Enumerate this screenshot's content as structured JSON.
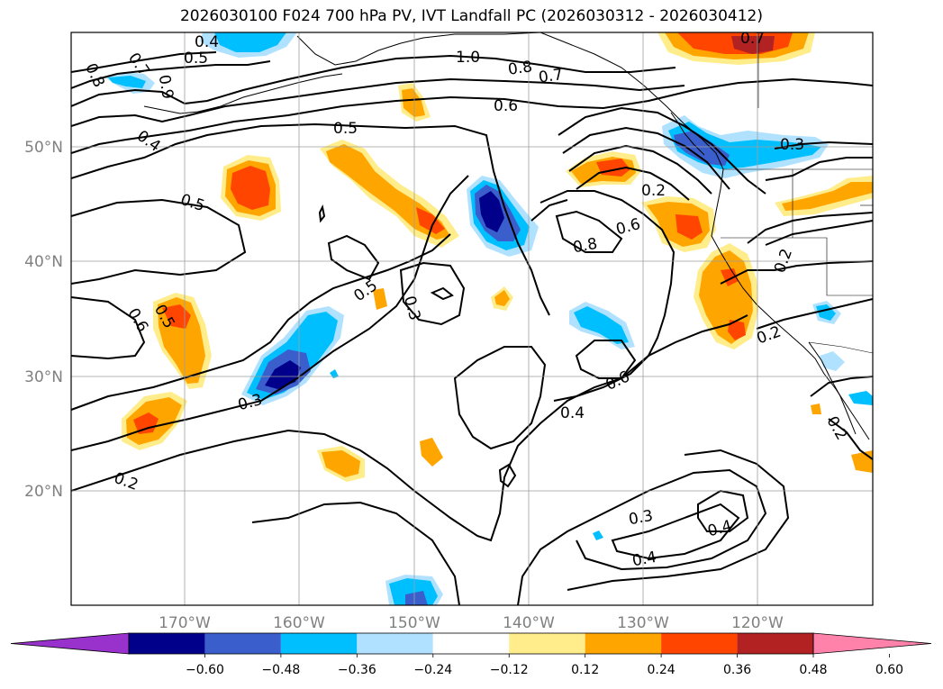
{
  "title": "2026030100 F024 700 hPa PV, IVT Landfall PC (2026030312 - 2026030412)",
  "longitude_labels": [
    "170°W",
    "160°W",
    "150°W",
    "140°W",
    "130°W",
    "120°W"
  ],
  "latitude_labels": [
    "50°N",
    "40°N",
    "30°N",
    "20°N"
  ],
  "colorbar": {
    "ticks": [
      "−0.60",
      "−0.48",
      "−0.36",
      "−0.24",
      "−0.12",
      "0.12",
      "0.24",
      "0.36",
      "0.48",
      "0.60"
    ],
    "colors": [
      "#9932cc",
      "#00008b",
      "#3a5fcd",
      "#00bfff",
      "#b0e2ff",
      "#ffffff",
      "#ffec8b",
      "#ffa500",
      "#ff4500",
      "#b22222",
      "#ff82ab"
    ]
  },
  "contour_labels": [
    {
      "text": "0.4"
    },
    {
      "text": "0.5"
    },
    {
      "text": "0.7"
    },
    {
      "text": "0.8"
    },
    {
      "text": "0.9"
    },
    {
      "text": "1.0"
    },
    {
      "text": "0.8"
    },
    {
      "text": "0.7"
    },
    {
      "text": "0.6"
    },
    {
      "text": "0.4"
    },
    {
      "text": "0.5"
    },
    {
      "text": "0.5"
    },
    {
      "text": "0.7"
    },
    {
      "text": "0.3"
    },
    {
      "text": "0.2"
    },
    {
      "text": "0.6"
    },
    {
      "text": "0.8"
    },
    {
      "text": "0.2"
    },
    {
      "text": "0.5"
    },
    {
      "text": "0.3"
    },
    {
      "text": "0.6"
    },
    {
      "text": "0.5"
    },
    {
      "text": "0.2"
    },
    {
      "text": "0.3"
    },
    {
      "text": "0.6"
    },
    {
      "text": "0.4"
    },
    {
      "text": "0.2"
    },
    {
      "text": "0.2"
    },
    {
      "text": "0.3"
    },
    {
      "text": "0.4"
    },
    {
      "text": "0.4"
    }
  ]
}
